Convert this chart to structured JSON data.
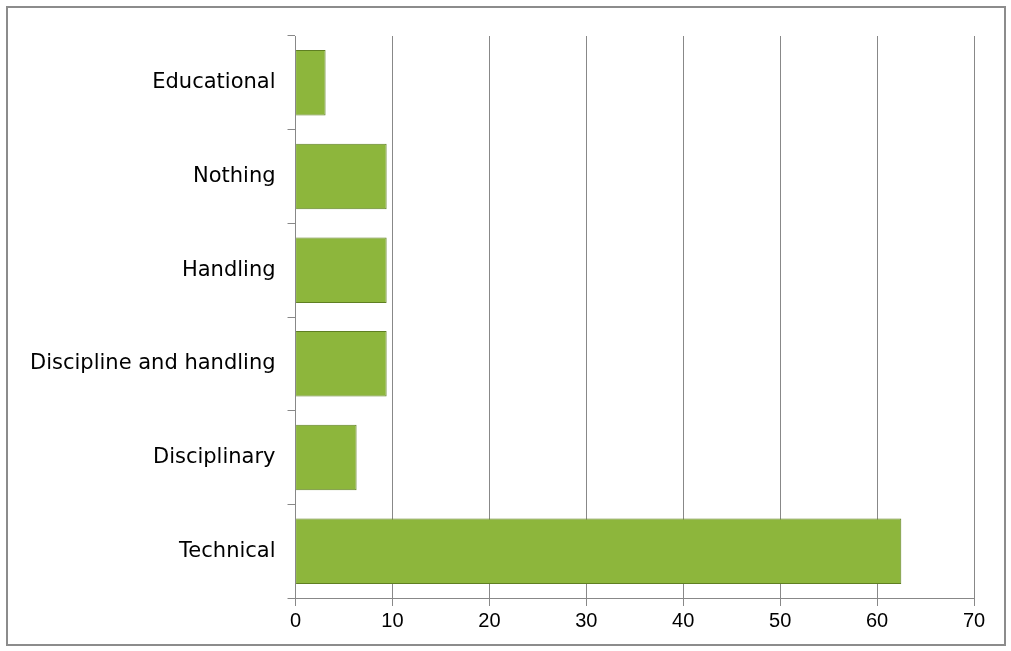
{
  "chart_data": {
    "type": "bar",
    "orientation": "horizontal",
    "categories": [
      "Educational",
      "Nothing",
      "Handling",
      "Discipline and handling",
      "Disciplinary",
      "Technical"
    ],
    "values": [
      3.1,
      9.4,
      9.4,
      9.4,
      6.3,
      62.5
    ],
    "color": "#8db63c",
    "xlim": [
      0,
      70
    ],
    "xticks": [
      0,
      10,
      20,
      30,
      40,
      50,
      60,
      70
    ],
    "grid": "x",
    "legend": false
  }
}
